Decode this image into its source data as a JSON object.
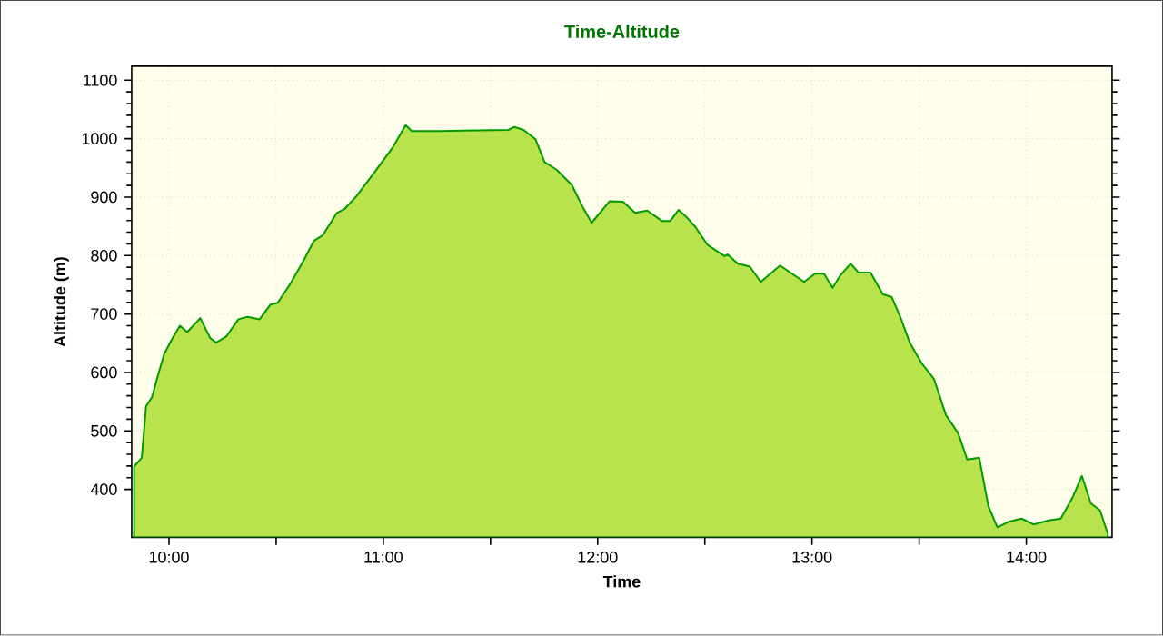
{
  "chart_data": {
    "type": "area",
    "title": "Time-Altitude",
    "xlabel": "Time",
    "ylabel": "Altitude (m)",
    "xlim": [
      9.826,
      14.4
    ],
    "ylim": [
      318,
      1124
    ],
    "xticks": [
      {
        "value": 10,
        "label": "10:00"
      },
      {
        "value": 10.5,
        "label": null
      },
      {
        "value": 11,
        "label": "11:00"
      },
      {
        "value": 11.5,
        "label": null
      },
      {
        "value": 12,
        "label": "12:00"
      },
      {
        "value": 12.5,
        "label": null
      },
      {
        "value": 13,
        "label": "13:00"
      },
      {
        "value": 13.5,
        "label": null
      },
      {
        "value": 14,
        "label": "14:00"
      }
    ],
    "yticks": [
      400,
      500,
      600,
      700,
      800,
      900,
      1000,
      1100
    ],
    "grid": true,
    "marker": "none",
    "line_style": "solid",
    "series": [
      {
        "color": "#009a00",
        "x": [
          9.837,
          9.873,
          9.893,
          9.921,
          9.944,
          9.977,
          10.014,
          10.051,
          10.085,
          10.146,
          10.192,
          10.22,
          10.268,
          10.324,
          10.366,
          10.423,
          10.473,
          10.507,
          10.563,
          10.62,
          10.676,
          10.718,
          10.783,
          10.817,
          10.873,
          10.958,
          11.042,
          11.104,
          11.132,
          11.262,
          11.583,
          11.611,
          11.654,
          11.71,
          11.752,
          11.808,
          11.879,
          11.935,
          11.972,
          12.056,
          12.118,
          12.175,
          12.231,
          12.301,
          12.338,
          12.377,
          12.414,
          12.456,
          12.513,
          12.592,
          12.606,
          12.654,
          12.71,
          12.761,
          12.851,
          12.963,
          13.014,
          13.056,
          13.096,
          13.132,
          13.18,
          13.217,
          13.273,
          13.33,
          13.372,
          13.414,
          13.456,
          13.513,
          13.569,
          13.625,
          13.682,
          13.724,
          13.78,
          13.823,
          13.865,
          13.921,
          13.977,
          14.034,
          14.104,
          14.161,
          14.217,
          14.259,
          14.301,
          14.344,
          14.38
        ],
        "values": [
          439,
          454,
          542,
          558,
          589,
          631,
          657,
          680,
          669,
          693,
          659,
          651,
          662,
          691,
          695,
          691,
          716,
          719,
          750,
          786,
          825,
          835,
          873,
          879,
          901,
          942,
          984,
          1023,
          1013,
          1013,
          1015,
          1020,
          1015,
          999,
          960,
          947,
          921,
          880,
          856,
          893,
          892,
          873,
          877,
          859,
          859,
          878,
          866,
          849,
          818,
          799,
          802,
          786,
          781,
          755,
          783,
          755,
          769,
          769,
          745,
          766,
          786,
          771,
          771,
          734,
          729,
          693,
          651,
          615,
          589,
          527,
          496,
          451,
          454,
          371,
          335,
          345,
          350,
          340,
          347,
          350,
          387,
          423,
          376,
          364,
          324
        ]
      }
    ]
  }
}
